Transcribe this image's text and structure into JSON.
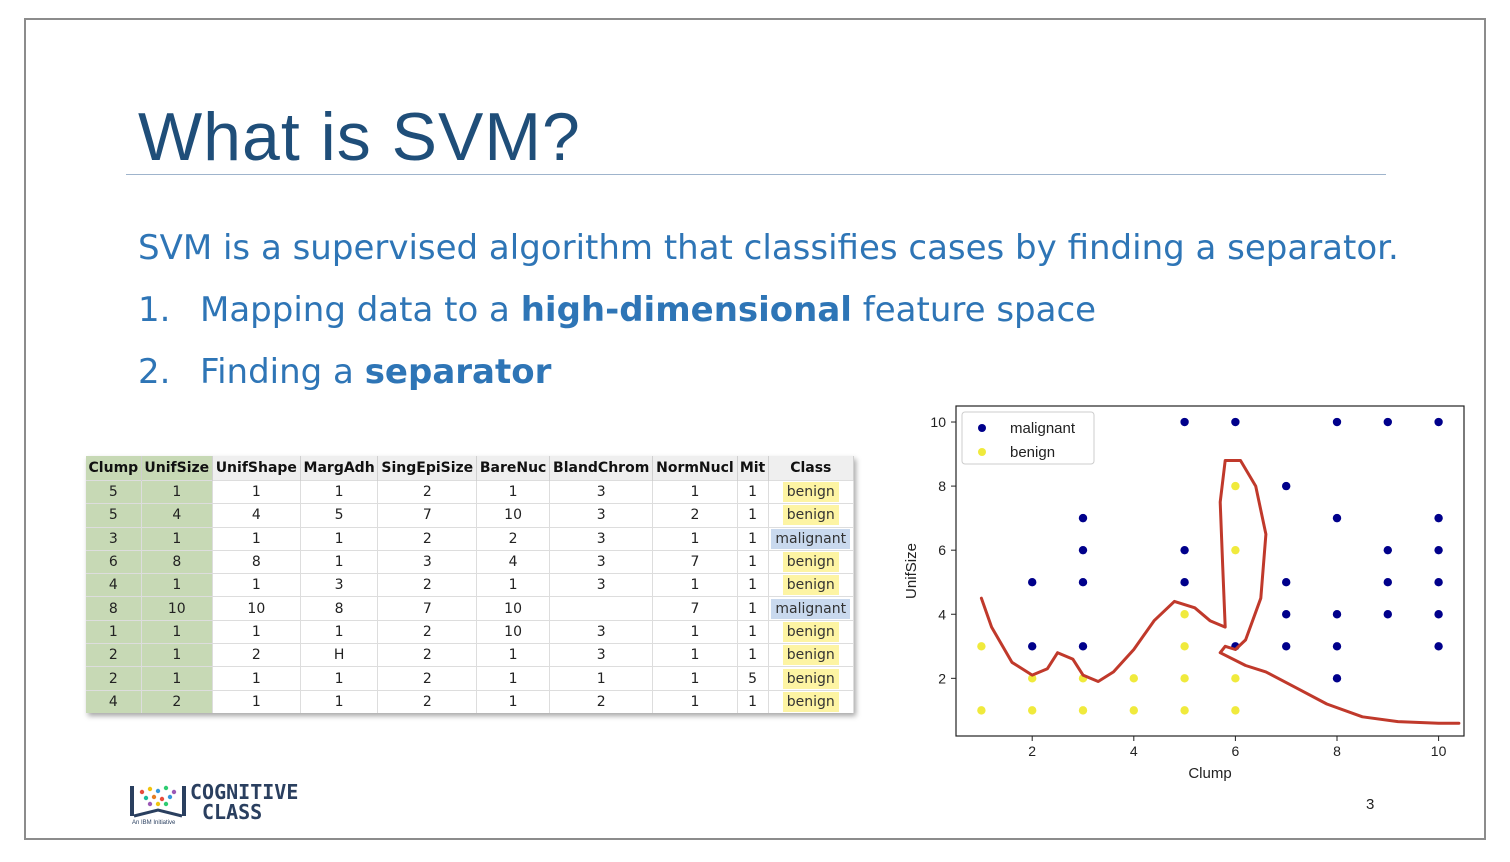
{
  "slide": {
    "title": "What is SVM?",
    "definition": "SVM is a supervised algorithm that classifies cases by finding a separator.",
    "steps": [
      {
        "num": "1.",
        "pre": "Mapping data to a ",
        "bold": "high-dimensional",
        "post": " feature space"
      },
      {
        "num": "2.",
        "pre": "Finding a ",
        "bold": "separator",
        "post": ""
      }
    ],
    "page_number": "3"
  },
  "logo": {
    "line1": "COGNITIVE",
    "line2": "CLASS",
    "tagline": "An IBM Initiative"
  },
  "table": {
    "headers": [
      "Clump",
      "UnifSize",
      "UnifShape",
      "MargAdh",
      "SingEpiSize",
      "BareNuc",
      "BlandChrom",
      "NormNucl",
      "Mit",
      "Class"
    ],
    "rows": [
      [
        "5",
        "1",
        "1",
        "1",
        "2",
        "1",
        "3",
        "1",
        "1",
        "benign"
      ],
      [
        "5",
        "4",
        "4",
        "5",
        "7",
        "10",
        "3",
        "2",
        "1",
        "benign"
      ],
      [
        "3",
        "1",
        "1",
        "1",
        "2",
        "2",
        "3",
        "1",
        "1",
        "malignant"
      ],
      [
        "6",
        "8",
        "8",
        "1",
        "3",
        "4",
        "3",
        "7",
        "1",
        "benign"
      ],
      [
        "4",
        "1",
        "1",
        "3",
        "2",
        "1",
        "3",
        "1",
        "1",
        "benign"
      ],
      [
        "8",
        "10",
        "10",
        "8",
        "7",
        "10",
        "",
        "7",
        "1",
        "malignant"
      ],
      [
        "1",
        "1",
        "1",
        "1",
        "2",
        "10",
        "3",
        "1",
        "1",
        "benign"
      ],
      [
        "2",
        "1",
        "2",
        "H",
        "2",
        "1",
        "3",
        "1",
        "1",
        "benign"
      ],
      [
        "2",
        "1",
        "1",
        "1",
        "2",
        "1",
        "1",
        "1",
        "5",
        "benign"
      ],
      [
        "4",
        "2",
        "1",
        "1",
        "2",
        "1",
        "2",
        "1",
        "1",
        "benign"
      ]
    ]
  },
  "chart_data": {
    "type": "scatter",
    "xlabel": "Clump",
    "ylabel": "UnifSize",
    "xlim": [
      0.5,
      10.5
    ],
    "ylim": [
      0.2,
      10.5
    ],
    "xticks": [
      2,
      4,
      6,
      8,
      10
    ],
    "yticks": [
      2,
      4,
      6,
      8,
      10
    ],
    "legend_position": "top-left",
    "series": [
      {
        "name": "malignant",
        "color": "#00008b",
        "points": [
          [
            5,
            10
          ],
          [
            6,
            10
          ],
          [
            8,
            10
          ],
          [
            9,
            10
          ],
          [
            10,
            10
          ],
          [
            7,
            8
          ],
          [
            3,
            7
          ],
          [
            8,
            7
          ],
          [
            10,
            7
          ],
          [
            3,
            6
          ],
          [
            5,
            6
          ],
          [
            9,
            6
          ],
          [
            10,
            6
          ],
          [
            2,
            5
          ],
          [
            3,
            5
          ],
          [
            5,
            5
          ],
          [
            7,
            5
          ],
          [
            9,
            5
          ],
          [
            10,
            5
          ],
          [
            7,
            4
          ],
          [
            8,
            4
          ],
          [
            9,
            4
          ],
          [
            10,
            4
          ],
          [
            2,
            3
          ],
          [
            3,
            3
          ],
          [
            6,
            3
          ],
          [
            7,
            3
          ],
          [
            8,
            3
          ],
          [
            10,
            3
          ],
          [
            8,
            2
          ]
        ]
      },
      {
        "name": "benign",
        "color": "#f0ea3c",
        "points": [
          [
            6,
            8
          ],
          [
            6,
            6
          ],
          [
            5,
            4
          ],
          [
            1,
            3
          ],
          [
            5,
            3
          ],
          [
            2,
            2
          ],
          [
            3,
            2
          ],
          [
            4,
            2
          ],
          [
            5,
            2
          ],
          [
            6,
            2
          ],
          [
            1,
            1
          ],
          [
            2,
            1
          ],
          [
            3,
            1
          ],
          [
            4,
            1
          ],
          [
            5,
            1
          ],
          [
            6,
            1
          ]
        ]
      }
    ],
    "separator_curve": [
      [
        1,
        4.5
      ],
      [
        1.2,
        3.6
      ],
      [
        1.6,
        2.5
      ],
      [
        2,
        2.1
      ],
      [
        2.3,
        2.3
      ],
      [
        2.5,
        2.8
      ],
      [
        2.8,
        2.6
      ],
      [
        3,
        2.1
      ],
      [
        3.3,
        1.9
      ],
      [
        3.6,
        2.2
      ],
      [
        4,
        2.9
      ],
      [
        4.4,
        3.8
      ],
      [
        4.8,
        4.4
      ],
      [
        5.2,
        4.2
      ],
      [
        5.5,
        3.8
      ],
      [
        5.8,
        3.6
      ],
      [
        5.75,
        5.5
      ],
      [
        5.7,
        7.5
      ],
      [
        5.8,
        8.8
      ],
      [
        6.1,
        8.8
      ],
      [
        6.4,
        8
      ],
      [
        6.6,
        6.5
      ],
      [
        6.5,
        4.5
      ],
      [
        6.2,
        3.2
      ],
      [
        6,
        2.9
      ],
      [
        5.8,
        3.0
      ],
      [
        5.7,
        2.8
      ],
      [
        6.2,
        2.4
      ],
      [
        6.6,
        2.2
      ],
      [
        7.2,
        1.7
      ],
      [
        7.8,
        1.2
      ],
      [
        8.5,
        0.8
      ],
      [
        9.2,
        0.65
      ],
      [
        10,
        0.6
      ],
      [
        10.4,
        0.6
      ]
    ]
  }
}
